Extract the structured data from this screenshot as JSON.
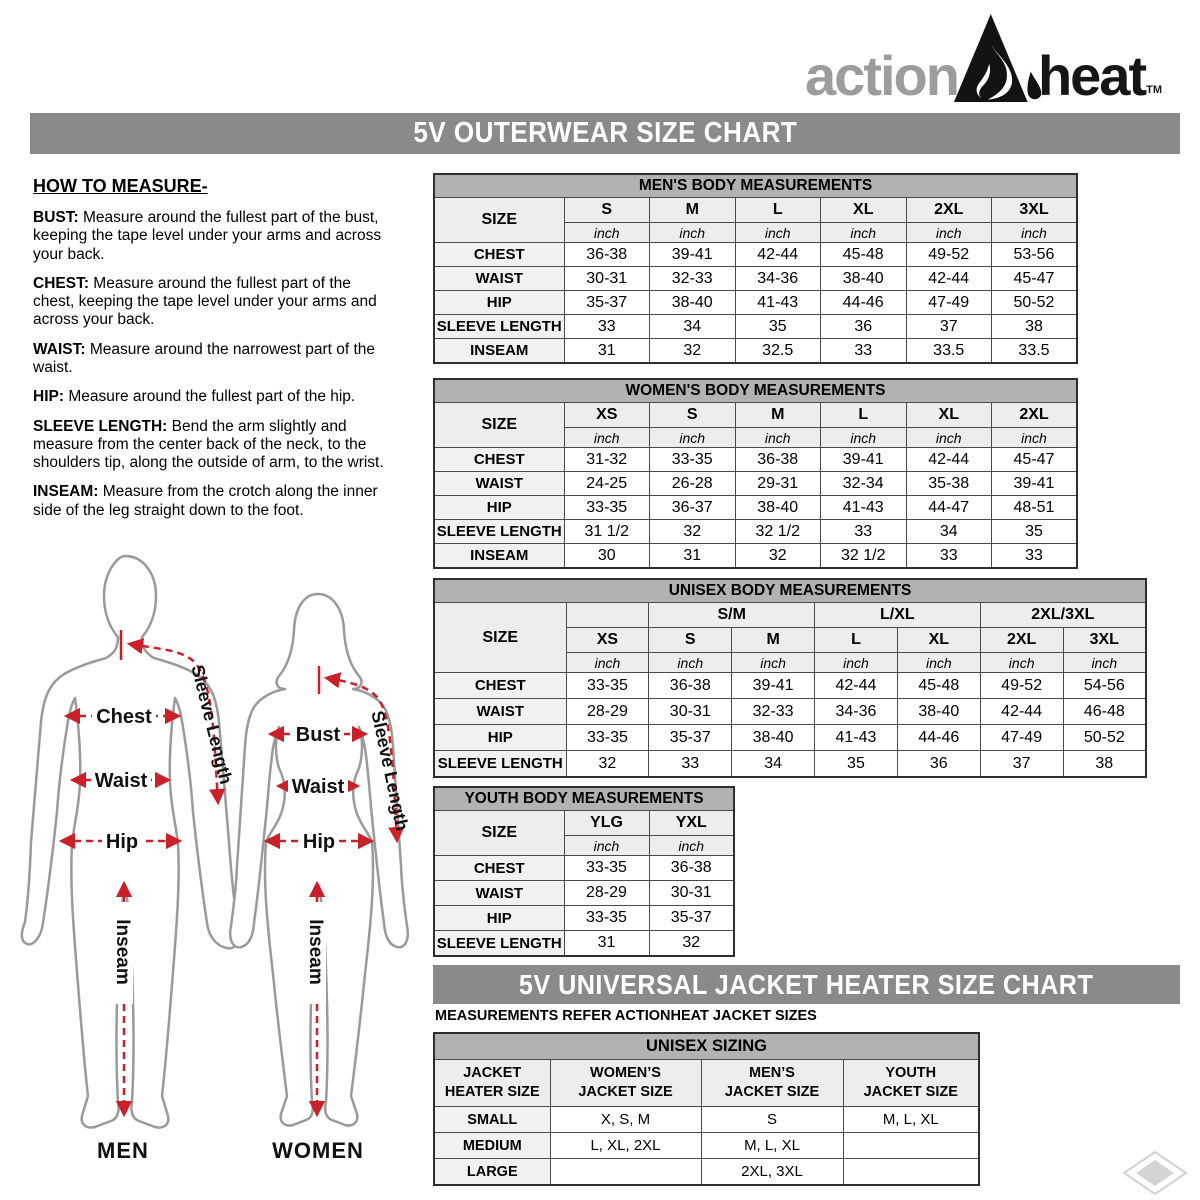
{
  "logo": {
    "action": "action",
    "heat": "heat",
    "tm": "TM"
  },
  "header": {
    "title": "5V OUTERWEAR SIZE CHART"
  },
  "how_to_measure": {
    "heading": "HOW TO MEASURE-",
    "items": [
      {
        "label": "BUST:",
        "text": "Measure around the fullest part of the bust, keeping the tape level under your arms and across your back."
      },
      {
        "label": "CHEST:",
        "text": "Measure around the fullest part of the chest, keeping the tape level under your arms and across your back."
      },
      {
        "label": "WAIST:",
        "text": "Measure around the narrowest part of the waist."
      },
      {
        "label": "HIP:",
        "text": "Measure around the fullest part of the hip."
      },
      {
        "label": "SLEEVE LENGTH:",
        "text": "Bend the arm slightly and measure from the center back of the neck, to the shoulders tip, along the outside of arm, to the wrist."
      },
      {
        "label": "INSEAM:",
        "text": "Measure from the crotch along the inner side of the leg straight down to the foot."
      }
    ]
  },
  "figure": {
    "men_label": "MEN",
    "women_label": "WOMEN",
    "annotations": {
      "chest": "Chest",
      "bust": "Bust",
      "waist": "Waist",
      "hip": "Hip",
      "sleeve_length": "Sleeve Length",
      "inseam": "Inseam"
    },
    "arrow_color": "#c9202a",
    "outline_color": "#9a9a9a"
  },
  "tables": {
    "mens": {
      "title": "MEN'S BODY MEASUREMENTS",
      "size_label": "SIZE",
      "unit": "inch",
      "sizes": [
        "S",
        "M",
        "L",
        "XL",
        "2XL",
        "3XL"
      ],
      "rows": [
        {
          "label": "CHEST",
          "values": [
            "36-38",
            "39-41",
            "42-44",
            "45-48",
            "49-52",
            "53-56"
          ]
        },
        {
          "label": "WAIST",
          "values": [
            "30-31",
            "32-33",
            "34-36",
            "38-40",
            "42-44",
            "45-47"
          ]
        },
        {
          "label": "HIP",
          "values": [
            "35-37",
            "38-40",
            "41-43",
            "44-46",
            "47-49",
            "50-52"
          ]
        },
        {
          "label": "SLEEVE LENGTH",
          "values": [
            "33",
            "34",
            "35",
            "36",
            "37",
            "38"
          ]
        },
        {
          "label": "INSEAM",
          "values": [
            "31",
            "32",
            "32.5",
            "33",
            "33.5",
            "33.5"
          ]
        }
      ]
    },
    "womens": {
      "title": "WOMEN'S BODY MEASUREMENTS",
      "size_label": "SIZE",
      "unit": "inch",
      "sizes": [
        "XS",
        "S",
        "M",
        "L",
        "XL",
        "2XL"
      ],
      "rows": [
        {
          "label": "CHEST",
          "values": [
            "31-32",
            "33-35",
            "36-38",
            "39-41",
            "42-44",
            "45-47"
          ]
        },
        {
          "label": "WAIST",
          "values": [
            "24-25",
            "26-28",
            "29-31",
            "32-34",
            "35-38",
            "39-41"
          ]
        },
        {
          "label": "HIP",
          "values": [
            "33-35",
            "36-37",
            "38-40",
            "41-43",
            "44-47",
            "48-51"
          ]
        },
        {
          "label": "SLEEVE LENGTH",
          "values": [
            "31 1/2",
            "32",
            "32 1/2",
            "33",
            "34",
            "35"
          ]
        },
        {
          "label": "INSEAM",
          "values": [
            "30",
            "31",
            "32",
            "32 1/2",
            "33",
            "33"
          ]
        }
      ]
    },
    "unisex": {
      "title": "UNISEX BODY MEASUREMENTS",
      "size_label": "SIZE",
      "unit": "inch",
      "groups": [
        "S/M",
        "L/XL",
        "2XL/3XL"
      ],
      "sizes": [
        "XS",
        "S",
        "M",
        "L",
        "XL",
        "2XL",
        "3XL"
      ],
      "rows": [
        {
          "label": "CHEST",
          "values": [
            "33-35",
            "36-38",
            "39-41",
            "42-44",
            "45-48",
            "49-52",
            "54-56"
          ]
        },
        {
          "label": "WAIST",
          "values": [
            "28-29",
            "30-31",
            "32-33",
            "34-36",
            "38-40",
            "42-44",
            "46-48"
          ]
        },
        {
          "label": "HIP",
          "values": [
            "33-35",
            "35-37",
            "38-40",
            "41-43",
            "44-46",
            "47-49",
            "50-52"
          ]
        },
        {
          "label": "SLEEVE LENGTH",
          "values": [
            "32",
            "33",
            "34",
            "35",
            "36",
            "37",
            "38"
          ]
        }
      ]
    },
    "youth": {
      "title": "YOUTH BODY MEASUREMENTS",
      "size_label": "SIZE",
      "unit": "inch",
      "sizes": [
        "YLG",
        "YXL"
      ],
      "rows": [
        {
          "label": "CHEST",
          "values": [
            "33-35",
            "36-38"
          ]
        },
        {
          "label": "WAIST",
          "values": [
            "28-29",
            "30-31"
          ]
        },
        {
          "label": "HIP",
          "values": [
            "33-35",
            "35-37"
          ]
        },
        {
          "label": "SLEEVE LENGTH",
          "values": [
            "31",
            "32"
          ]
        }
      ]
    }
  },
  "heater_chart": {
    "title": "5V UNIVERSAL JACKET HEATER SIZE CHART",
    "note": "MEASUREMENTS REFER ACTIONHEAT JACKET SIZES",
    "table": {
      "title": "UNISEX SIZING",
      "columns": [
        "JACKET\nHEATER SIZE",
        "WOMEN’S\nJACKET SIZE",
        "MEN’S\nJACKET SIZE",
        "YOUTH\nJACKET SIZE"
      ],
      "rows": [
        {
          "label": "SMALL",
          "values": [
            "X, S, M",
            "S",
            "M, L, XL"
          ]
        },
        {
          "label": "MEDIUM",
          "values": [
            "L, XL, 2XL",
            "M, L, XL",
            ""
          ]
        },
        {
          "label": "LARGE",
          "values": [
            "",
            "2XL, 3XL",
            ""
          ]
        }
      ]
    }
  },
  "colors": {
    "bar_gray": "#8a8a8a",
    "table_title_gray": "#b2b2b2",
    "header_gray": "#ededed",
    "accent_red": "#c9202a",
    "logo_gray": "#9c9c9c"
  }
}
